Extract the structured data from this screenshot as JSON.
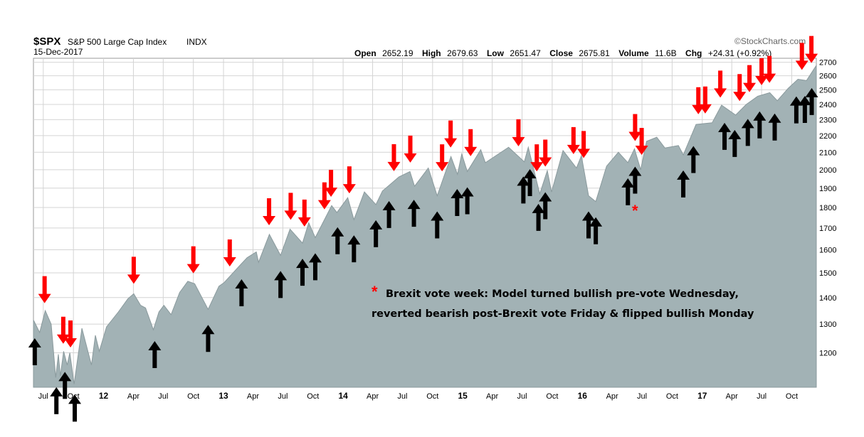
{
  "header": {
    "ticker": "$SPX",
    "name": "S&P 500 Large Cap Index",
    "exchange": "INDX",
    "date": "15-Dec-2017",
    "source": "©StockCharts.com",
    "quote": {
      "open_label": "Open",
      "open": "2652.19",
      "high_label": "High",
      "high": "2679.63",
      "low_label": "Low",
      "low": "2651.47",
      "close_label": "Close",
      "close": "2675.81",
      "volume_label": "Volume",
      "volume": "11.6B",
      "chg_label": "Chg",
      "chg": "+24.31 (+0.92%)"
    }
  },
  "annotation": {
    "star": "*",
    "line1": "Brexit vote week: Model turned bullish pre-vote Wednesday,",
    "line2": "reverted bearish post-Brexit vote Friday & flipped bullish Monday"
  },
  "colors": {
    "area_fill": "#a2b2b5",
    "area_line": "#8a9a9d",
    "grid": "#d4d4d4",
    "bearish_arrow": "#ff0000",
    "bullish_arrow": "#000000"
  },
  "chart_data": {
    "type": "area",
    "xlabel": "",
    "ylabel": "",
    "ylim": [
      1090,
      2730
    ],
    "y_scale": "log",
    "y_ticks": [
      1200,
      1300,
      1400,
      1500,
      1600,
      1700,
      1800,
      1900,
      2000,
      2100,
      2200,
      2300,
      2400,
      2500,
      2600,
      2700
    ],
    "xlim": [
      "2011-06-01",
      "2017-12-15"
    ],
    "x_ticks": [
      {
        "label": "Jul",
        "date": "2011-07-01",
        "bold": false
      },
      {
        "label": "Oct",
        "date": "2011-10-01",
        "bold": false
      },
      {
        "label": "12",
        "date": "2012-01-01",
        "bold": true
      },
      {
        "label": "Apr",
        "date": "2012-04-01",
        "bold": false
      },
      {
        "label": "Jul",
        "date": "2012-07-01",
        "bold": false
      },
      {
        "label": "Oct",
        "date": "2012-10-01",
        "bold": false
      },
      {
        "label": "13",
        "date": "2013-01-01",
        "bold": true
      },
      {
        "label": "Apr",
        "date": "2013-04-01",
        "bold": false
      },
      {
        "label": "Jul",
        "date": "2013-07-01",
        "bold": false
      },
      {
        "label": "Oct",
        "date": "2013-10-01",
        "bold": false
      },
      {
        "label": "14",
        "date": "2014-01-01",
        "bold": true
      },
      {
        "label": "Apr",
        "date": "2014-04-01",
        "bold": false
      },
      {
        "label": "Jul",
        "date": "2014-07-01",
        "bold": false
      },
      {
        "label": "Oct",
        "date": "2014-10-01",
        "bold": false
      },
      {
        "label": "15",
        "date": "2015-01-01",
        "bold": true
      },
      {
        "label": "Apr",
        "date": "2015-04-01",
        "bold": false
      },
      {
        "label": "Jul",
        "date": "2015-07-01",
        "bold": false
      },
      {
        "label": "Oct",
        "date": "2015-10-01",
        "bold": false
      },
      {
        "label": "16",
        "date": "2016-01-01",
        "bold": true
      },
      {
        "label": "Apr",
        "date": "2016-04-01",
        "bold": false
      },
      {
        "label": "Jul",
        "date": "2016-07-01",
        "bold": false
      },
      {
        "label": "Oct",
        "date": "2016-10-01",
        "bold": false
      },
      {
        "label": "17",
        "date": "2017-01-01",
        "bold": true
      },
      {
        "label": "Apr",
        "date": "2017-04-01",
        "bold": false
      },
      {
        "label": "Jul",
        "date": "2017-07-01",
        "bold": false
      },
      {
        "label": "Oct",
        "date": "2017-10-01",
        "bold": false
      }
    ],
    "series": [
      {
        "values": [
          [
            "2011-06-01",
            1315
          ],
          [
            "2011-06-20",
            1270
          ],
          [
            "2011-07-07",
            1350
          ],
          [
            "2011-07-25",
            1300
          ],
          [
            "2011-08-08",
            1120
          ],
          [
            "2011-08-16",
            1195
          ],
          [
            "2011-08-22",
            1125
          ],
          [
            "2011-09-01",
            1205
          ],
          [
            "2011-09-12",
            1160
          ],
          [
            "2011-09-20",
            1200
          ],
          [
            "2011-10-03",
            1100
          ],
          [
            "2011-10-27",
            1285
          ],
          [
            "2011-11-25",
            1160
          ],
          [
            "2011-12-07",
            1260
          ],
          [
            "2011-12-19",
            1205
          ],
          [
            "2012-01-10",
            1290
          ],
          [
            "2012-02-15",
            1345
          ],
          [
            "2012-03-15",
            1395
          ],
          [
            "2012-04-02",
            1415
          ],
          [
            "2012-04-23",
            1370
          ],
          [
            "2012-05-08",
            1360
          ],
          [
            "2012-06-01",
            1280
          ],
          [
            "2012-06-18",
            1345
          ],
          [
            "2012-07-03",
            1370
          ],
          [
            "2012-07-25",
            1335
          ],
          [
            "2012-08-20",
            1420
          ],
          [
            "2012-09-14",
            1465
          ],
          [
            "2012-10-05",
            1455
          ],
          [
            "2012-11-15",
            1355
          ],
          [
            "2012-12-18",
            1445
          ],
          [
            "2013-01-03",
            1460
          ],
          [
            "2013-02-19",
            1530
          ],
          [
            "2013-03-14",
            1565
          ],
          [
            "2013-04-11",
            1590
          ],
          [
            "2013-04-18",
            1545
          ],
          [
            "2013-05-21",
            1670
          ],
          [
            "2013-06-24",
            1575
          ],
          [
            "2013-07-23",
            1695
          ],
          [
            "2013-08-30",
            1630
          ],
          [
            "2013-09-18",
            1725
          ],
          [
            "2013-10-08",
            1655
          ],
          [
            "2013-11-27",
            1810
          ],
          [
            "2013-12-13",
            1775
          ],
          [
            "2014-01-15",
            1850
          ],
          [
            "2014-02-03",
            1740
          ],
          [
            "2014-03-07",
            1880
          ],
          [
            "2014-04-11",
            1815
          ],
          [
            "2014-05-01",
            1885
          ],
          [
            "2014-06-20",
            1960
          ],
          [
            "2014-07-24",
            1990
          ],
          [
            "2014-08-07",
            1910
          ],
          [
            "2014-09-18",
            2010
          ],
          [
            "2014-10-15",
            1860
          ],
          [
            "2014-11-26",
            2075
          ],
          [
            "2014-12-16",
            1975
          ],
          [
            "2014-12-29",
            2090
          ],
          [
            "2015-01-15",
            1990
          ],
          [
            "2015-02-25",
            2115
          ],
          [
            "2015-03-11",
            2040
          ],
          [
            "2015-05-21",
            2130
          ],
          [
            "2015-07-08",
            2045
          ],
          [
            "2015-07-20",
            2130
          ],
          [
            "2015-08-24",
            1870
          ],
          [
            "2015-09-16",
            1995
          ],
          [
            "2015-09-29",
            1880
          ],
          [
            "2015-11-03",
            2110
          ],
          [
            "2015-12-14",
            2010
          ],
          [
            "2015-12-29",
            2080
          ],
          [
            "2016-01-20",
            1860
          ],
          [
            "2016-02-11",
            1830
          ],
          [
            "2016-03-15",
            2020
          ],
          [
            "2016-04-20",
            2100
          ],
          [
            "2016-05-19",
            2040
          ],
          [
            "2016-06-08",
            2120
          ],
          [
            "2016-06-27",
            2000
          ],
          [
            "2016-07-15",
            2165
          ],
          [
            "2016-08-15",
            2190
          ],
          [
            "2016-09-09",
            2125
          ],
          [
            "2016-10-20",
            2140
          ],
          [
            "2016-11-04",
            2085
          ],
          [
            "2016-12-13",
            2270
          ],
          [
            "2017-01-31",
            2280
          ],
          [
            "2017-03-01",
            2395
          ],
          [
            "2017-04-13",
            2330
          ],
          [
            "2017-05-15",
            2400
          ],
          [
            "2017-06-19",
            2455
          ],
          [
            "2017-07-26",
            2480
          ],
          [
            "2017-08-18",
            2425
          ],
          [
            "2017-09-20",
            2510
          ],
          [
            "2017-10-20",
            2575
          ],
          [
            "2017-11-15",
            2565
          ],
          [
            "2017-12-15",
            2676
          ]
        ]
      }
    ],
    "annotations": {
      "bearish_arrows_dates": [
        "2011-07-05",
        "2011-08-31",
        "2011-09-22",
        "2012-04-02",
        "2012-10-01",
        "2013-01-20",
        "2013-05-20",
        "2013-07-25",
        "2013-09-05",
        "2013-11-05",
        "2013-11-25",
        "2014-01-20",
        "2014-06-05",
        "2014-07-25",
        "2014-10-30",
        "2014-11-25",
        "2015-01-25",
        "2015-06-20",
        "2015-08-15",
        "2015-09-10",
        "2015-12-05",
        "2016-01-05",
        "2016-06-10",
        "2016-06-30",
        "2016-12-20",
        "2017-01-10",
        "2017-02-25",
        "2017-04-25",
        "2017-05-25",
        "2017-07-01",
        "2017-07-25",
        "2017-11-01",
        "2017-11-30"
      ],
      "bullish_arrows_dates": [
        "2011-06-05",
        "2011-08-10",
        "2011-09-05",
        "2011-10-05",
        "2012-06-05",
        "2012-11-15",
        "2013-02-25",
        "2013-06-24",
        "2013-08-30",
        "2013-10-08",
        "2013-12-15",
        "2014-02-03",
        "2014-04-11",
        "2014-05-21",
        "2014-08-05",
        "2014-10-15",
        "2014-12-15",
        "2015-01-15",
        "2015-07-05",
        "2015-07-25",
        "2015-08-20",
        "2015-09-10",
        "2016-01-20",
        "2016-02-11",
        "2016-05-19",
        "2016-06-10",
        "2016-11-04",
        "2016-12-05",
        "2017-03-10",
        "2017-04-10",
        "2017-05-20",
        "2017-06-25",
        "2017-08-10",
        "2017-10-15",
        "2017-11-10",
        "2017-12-01"
      ]
    }
  }
}
